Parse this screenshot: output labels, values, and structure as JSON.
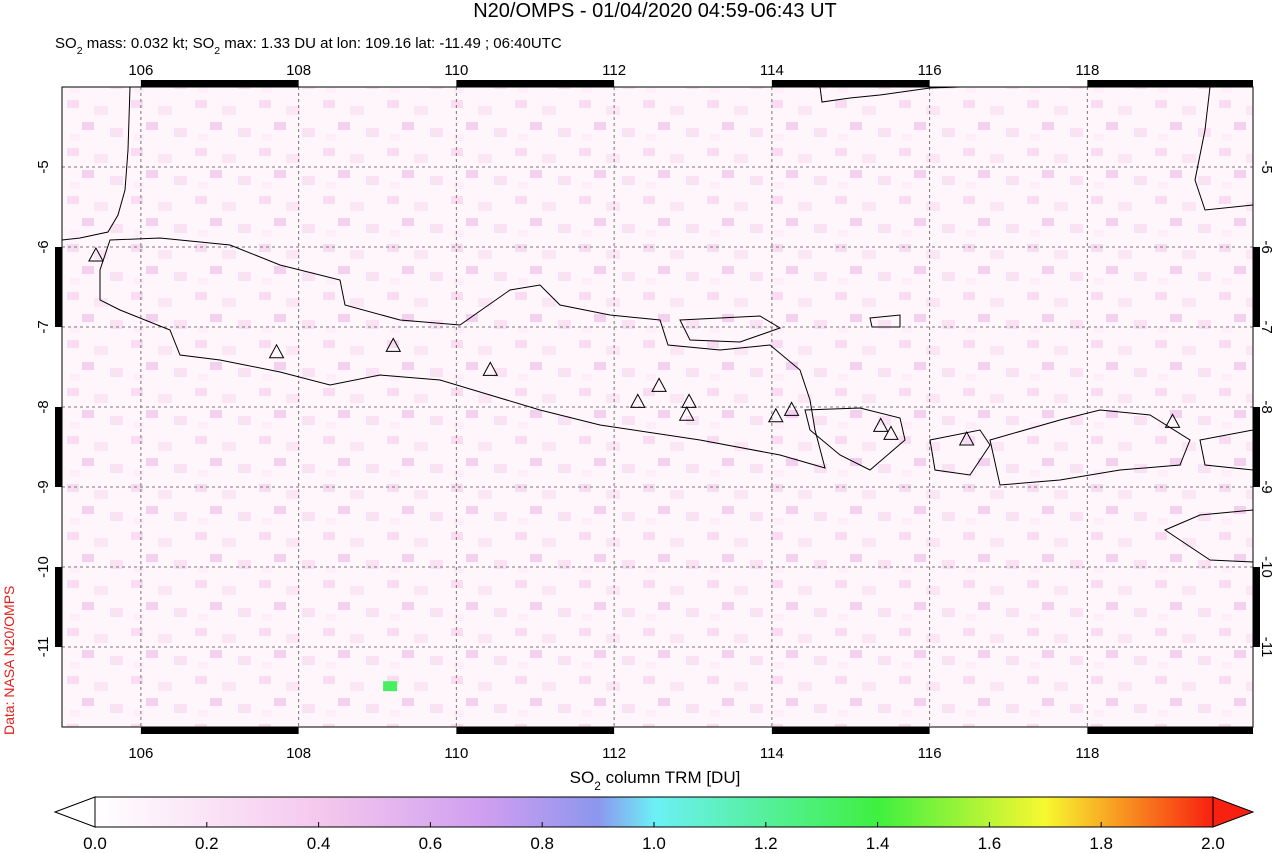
{
  "header": {
    "title": "N20/OMPS - 01/04/2020 04:59-06:43 UT",
    "subtitle": [
      "SO",
      "2",
      " mass: 0.032 kt; SO",
      "2",
      " max: 1.33 DU at lon: 109.16 lat: -11.49 ; 06:40UTC"
    ],
    "source": "Data: NASA N20/OMPS"
  },
  "map": {
    "xlim": [
      105,
      120.1
    ],
    "ylim": [
      -12,
      -4
    ],
    "xticks": [
      106,
      108,
      110,
      112,
      114,
      116,
      118
    ],
    "yticks": [
      -5,
      -6,
      -7,
      -8,
      -9,
      -10,
      -11
    ],
    "volcanoes": [
      [
        105.43,
        -6.1
      ],
      [
        107.72,
        -7.31
      ],
      [
        109.2,
        -7.23
      ],
      [
        110.43,
        -7.53
      ],
      [
        112.3,
        -7.93
      ],
      [
        112.57,
        -7.73
      ],
      [
        112.95,
        -7.93
      ],
      [
        112.92,
        -8.09
      ],
      [
        114.05,
        -8.11
      ],
      [
        114.25,
        -8.03
      ],
      [
        115.38,
        -8.23
      ],
      [
        115.51,
        -8.33
      ],
      [
        116.47,
        -8.4
      ],
      [
        119.08,
        -8.18
      ]
    ],
    "max_pixel": {
      "lon": 109.16,
      "lat": -11.49,
      "value": 1.33
    }
  },
  "colorbar": {
    "label": [
      "SO",
      "2",
      " column TRM [DU]"
    ],
    "lim": [
      0,
      2
    ],
    "ticks": [
      {
        "value": 0,
        "label": "0.0"
      },
      {
        "value": 0.2,
        "label": "0.2"
      },
      {
        "value": 0.4,
        "label": "0.4"
      },
      {
        "value": 0.6,
        "label": "0.6"
      },
      {
        "value": 0.8,
        "label": "0.8"
      },
      {
        "value": 1,
        "label": "1.0"
      },
      {
        "value": 1.2,
        "label": "1.2"
      },
      {
        "value": 1.4,
        "label": "1.4"
      },
      {
        "value": 1.6,
        "label": "1.6"
      },
      {
        "value": 1.8,
        "label": "1.8"
      },
      {
        "value": 2,
        "label": "2.0"
      }
    ]
  }
}
